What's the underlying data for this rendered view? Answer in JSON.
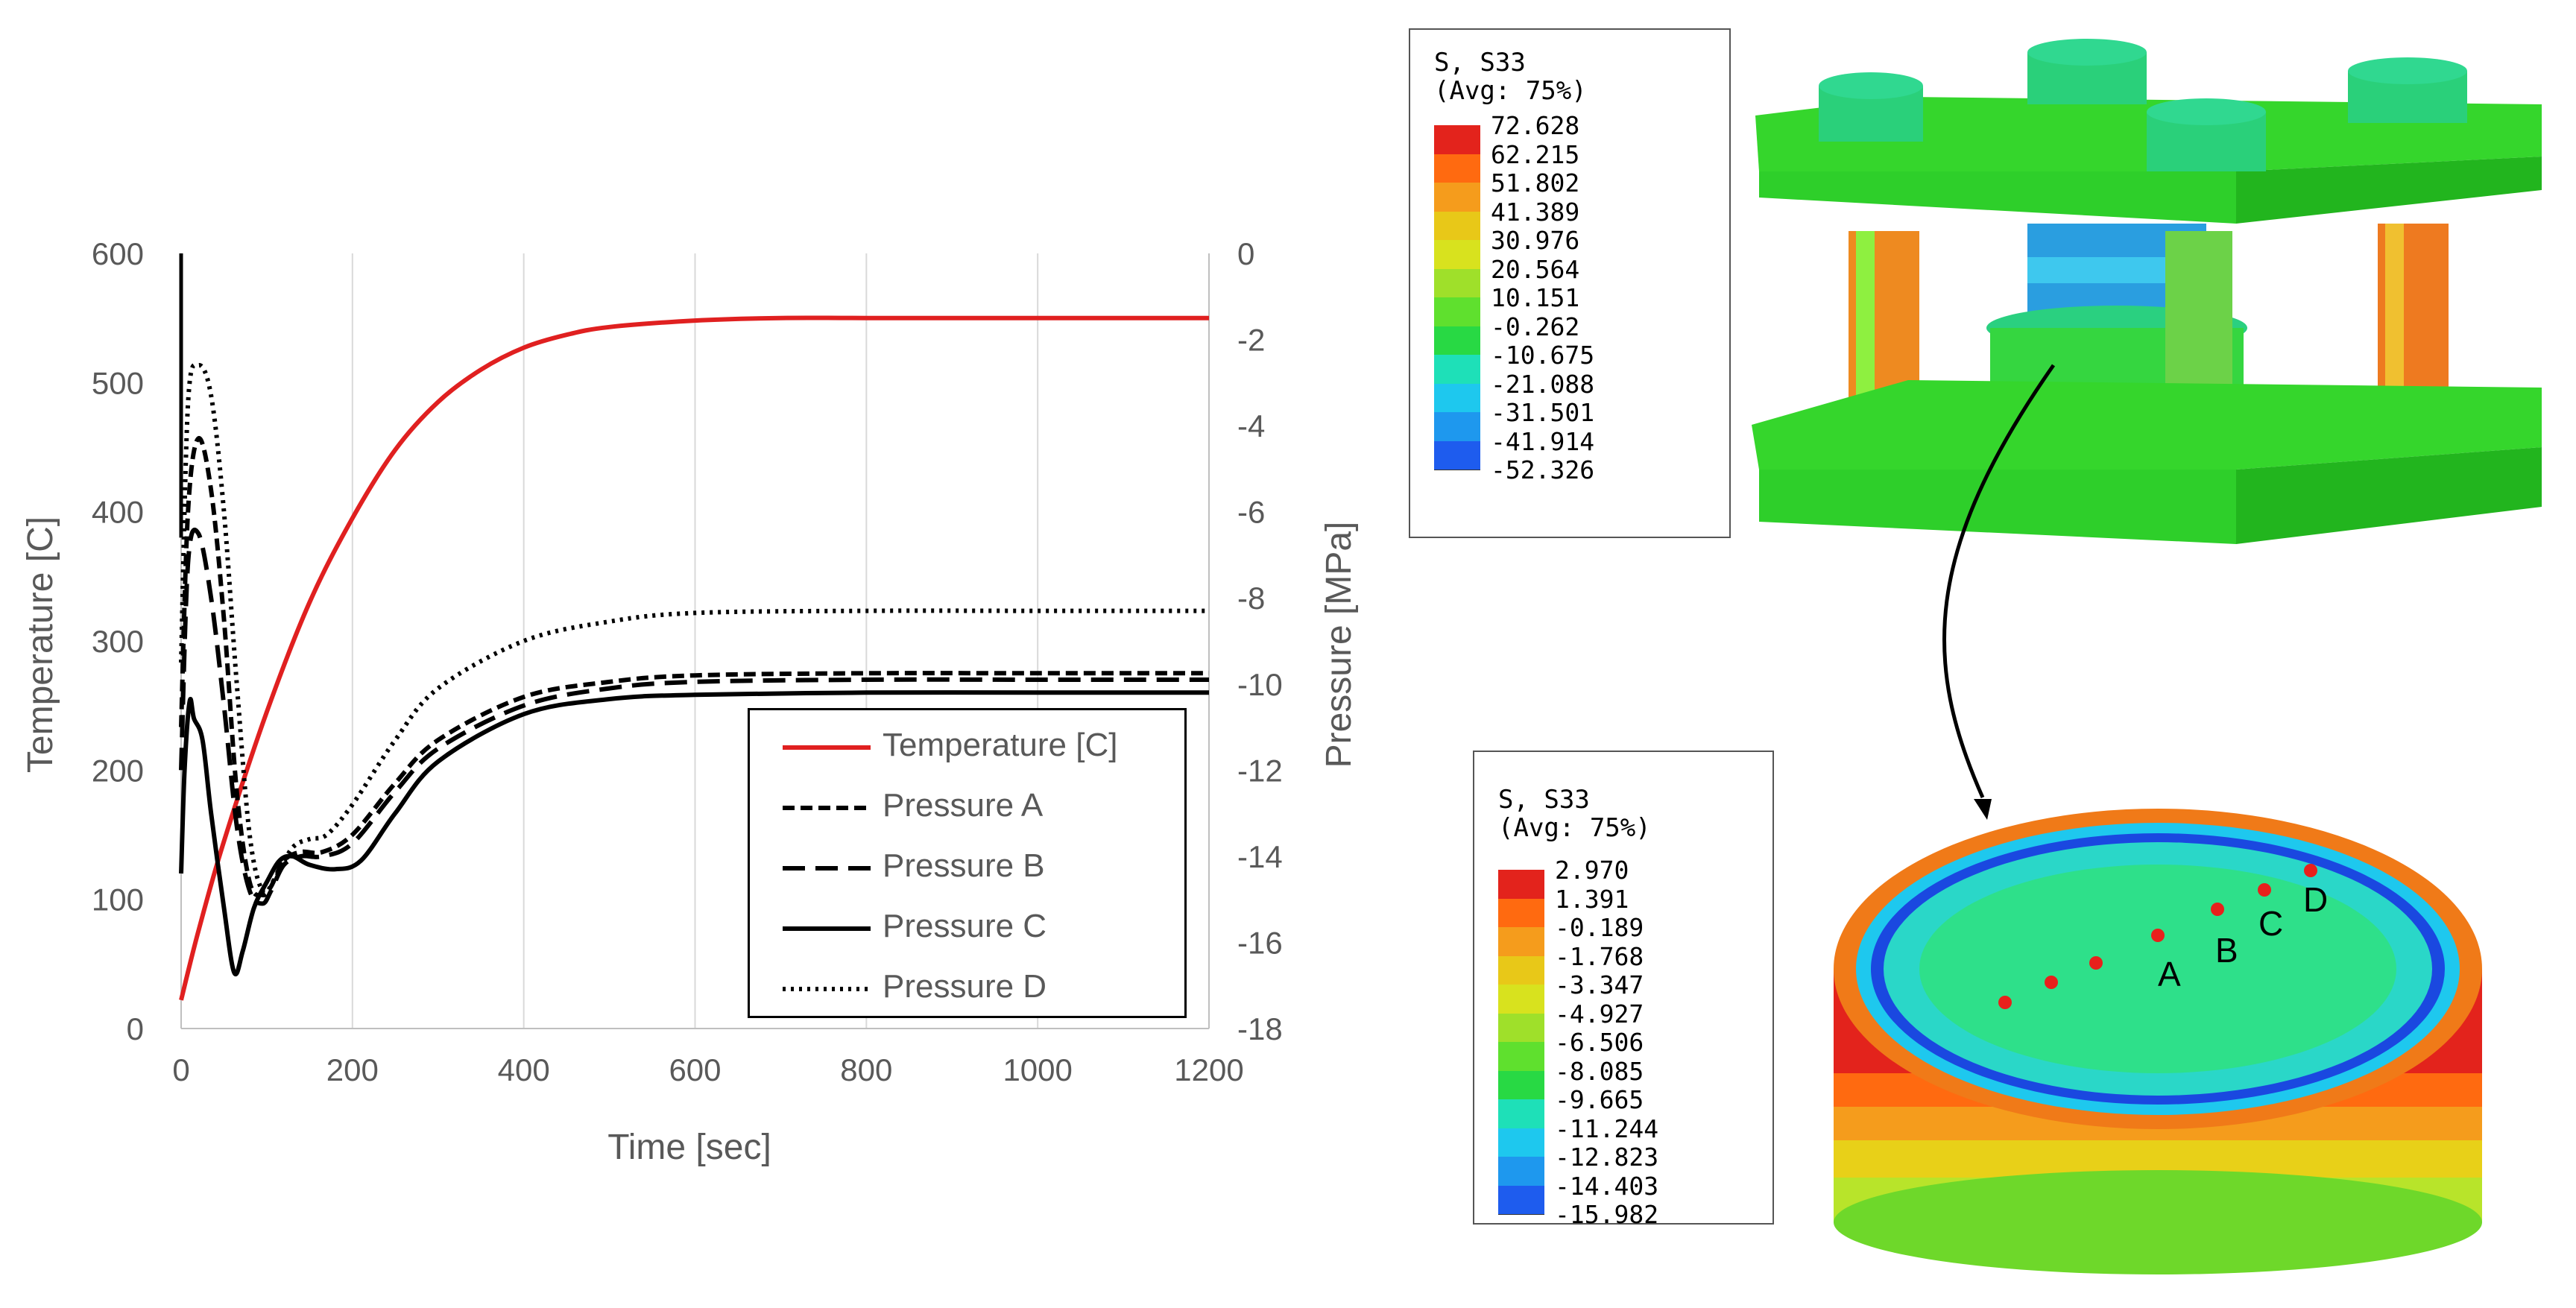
{
  "chart_data": {
    "type": "line",
    "xlabel": "Time [sec]",
    "ylabel": "Temperature [C]",
    "y2label": "Pressure [MPa]",
    "xlim": [
      0,
      1200
    ],
    "ylim": [
      0,
      600
    ],
    "y2lim": [
      -18,
      0
    ],
    "xticks": [
      "0",
      "200",
      "400",
      "600",
      "800",
      "1000",
      "1200"
    ],
    "yticks": [
      "0",
      "100",
      "200",
      "300",
      "400",
      "500",
      "600"
    ],
    "y2ticks": [
      "-18",
      "-16",
      "-14",
      "-12",
      "-10",
      "-8",
      "-6",
      "-4",
      "-2",
      "0"
    ],
    "grid": "vertical",
    "legend_position": "lower-right",
    "series": [
      {
        "name": "Temperature [C]",
        "axis": "left",
        "color": "#e02020",
        "style": "solid",
        "x": [
          0,
          20,
          50,
          100,
          150,
          200,
          250,
          300,
          350,
          400,
          450,
          500,
          600,
          700,
          800,
          1000,
          1200
        ],
        "y": [
          22,
          75,
          145,
          245,
          330,
          395,
          448,
          485,
          510,
          527,
          537,
          543,
          548,
          550,
          550,
          550,
          550
        ]
      },
      {
        "name": "Pressure A",
        "axis": "right",
        "color": "#000000",
        "style": "dash-short",
        "x": [
          0,
          8,
          20,
          35,
          50,
          65,
          80,
          95,
          105,
          120,
          140,
          165,
          200,
          250,
          300,
          400,
          500,
          600,
          800,
          1000,
          1200
        ],
        "y": [
          -11,
          -6,
          -4.3,
          -5.5,
          -8.5,
          -12.5,
          -14.6,
          -14.9,
          -14.7,
          -14.1,
          -13.9,
          -13.9,
          -13.5,
          -12.3,
          -11.3,
          -10.3,
          -9.95,
          -9.8,
          -9.75,
          -9.75,
          -9.75
        ]
      },
      {
        "name": "Pressure B",
        "axis": "right",
        "color": "#000000",
        "style": "dash-long",
        "x": [
          0,
          8,
          20,
          35,
          50,
          65,
          80,
          95,
          105,
          120,
          140,
          165,
          200,
          250,
          300,
          400,
          500,
          600,
          800,
          1000,
          1200
        ],
        "y": [
          -12,
          -7.2,
          -6.5,
          -8,
          -10.5,
          -13.3,
          -14.8,
          -15.1,
          -14.8,
          -14.2,
          -14.0,
          -14.0,
          -13.7,
          -12.5,
          -11.5,
          -10.5,
          -10.1,
          -9.95,
          -9.9,
          -9.9,
          -9.9
        ]
      },
      {
        "name": "Pressure C",
        "axis": "right",
        "color": "#000000",
        "style": "solid",
        "x": [
          0,
          4,
          10,
          15,
          25,
          35,
          50,
          62,
          72,
          85,
          100,
          115,
          130,
          150,
          180,
          210,
          250,
          300,
          400,
          500,
          600,
          800,
          1000,
          1200
        ],
        "y": [
          -14.4,
          -12.0,
          -10.4,
          -10.8,
          -11.3,
          -13,
          -15.2,
          -16.7,
          -16.2,
          -15.2,
          -14.6,
          -14.1,
          -14.0,
          -14.2,
          -14.3,
          -14.1,
          -13,
          -11.8,
          -10.7,
          -10.35,
          -10.25,
          -10.2,
          -10.2,
          -10.2
        ]
      },
      {
        "name": "Pressure D",
        "axis": "right",
        "color": "#000000",
        "style": "dotted",
        "x": [
          0,
          8,
          20,
          35,
          50,
          65,
          80,
          95,
          110,
          130,
          150,
          170,
          200,
          250,
          300,
          400,
          500,
          600,
          800,
          1000,
          1200
        ],
        "y": [
          -9.5,
          -3.5,
          -2.6,
          -3.3,
          -6,
          -10,
          -13.5,
          -14.8,
          -14.5,
          -13.8,
          -13.6,
          -13.5,
          -12.8,
          -11.3,
          -10.1,
          -9,
          -8.55,
          -8.35,
          -8.3,
          -8.3,
          -8.3
        ]
      }
    ]
  },
  "contour_top": {
    "header": [
      "S, S33",
      "(Avg: 75%)"
    ],
    "values": [
      "72.628",
      "62.215",
      "51.802",
      "41.389",
      "30.976",
      "20.564",
      "10.151",
      "-0.262",
      "-10.675",
      "-21.088",
      "-31.501",
      "-41.914",
      "-52.326"
    ],
    "colors": [
      "#e3231c",
      "#ff6a10",
      "#f59c1c",
      "#e8c818",
      "#d8e21e",
      "#9fe02a",
      "#5fe02e",
      "#28d944",
      "#1ee0b8",
      "#1ec8ee",
      "#1e98ee",
      "#1e5cee",
      "#1a2ad6"
    ]
  },
  "contour_bottom": {
    "header": [
      "S, S33",
      "(Avg: 75%)"
    ],
    "values": [
      "2.970",
      "1.391",
      "-0.189",
      "-1.768",
      "-3.347",
      "-4.927",
      "-6.506",
      "-8.085",
      "-9.665",
      "-11.244",
      "-12.823",
      "-14.403",
      "-15.982"
    ],
    "colors": [
      "#e3231c",
      "#ff6a10",
      "#f59c1c",
      "#e8c818",
      "#d8e21e",
      "#9fe02a",
      "#5fe02e",
      "#28d944",
      "#1ee0b8",
      "#1ec8ee",
      "#1e98ee",
      "#1e5cee",
      "#1a2ad6"
    ]
  },
  "points": {
    "a": "A",
    "b": "B",
    "c": "C",
    "d": "D"
  }
}
